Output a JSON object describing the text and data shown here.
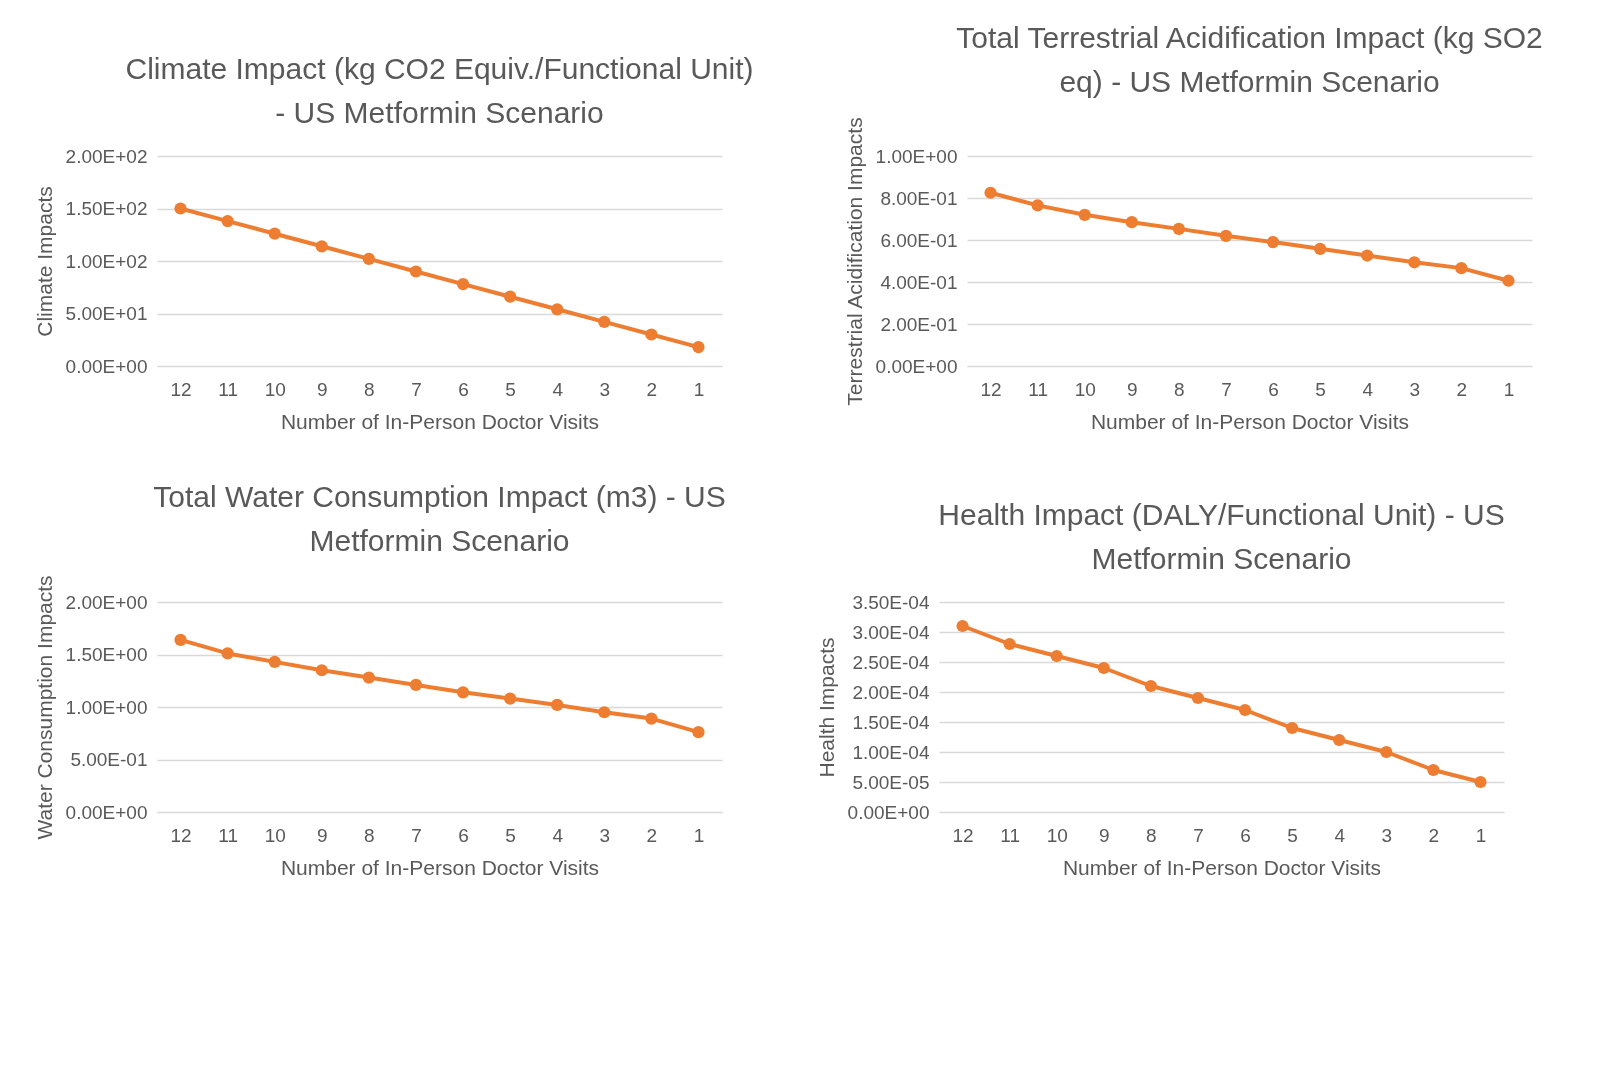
{
  "chart_data": [
    {
      "type": "line",
      "title": "Climate Impact (kg CO2 Equiv./Functional Unit) - US Metformin Scenario",
      "xlabel": "Number of In-Person Doctor Visits",
      "ylabel": "Climate Impacts",
      "categories": [
        "12",
        "11",
        "10",
        "9",
        "8",
        "7",
        "6",
        "5",
        "4",
        "3",
        "2",
        "1"
      ],
      "series": [
        {
          "color": "#ed7d31",
          "values": [
            150,
            138,
            126,
            114,
            102,
            90,
            78,
            66,
            54,
            42,
            30,
            18
          ]
        }
      ],
      "ylim": [
        0,
        200
      ],
      "yticks": [
        {
          "value": 0,
          "label": "0.00E+00"
        },
        {
          "value": 50,
          "label": "5.00E+01"
        },
        {
          "value": 100,
          "label": "1.00E+02"
        },
        {
          "value": 150,
          "label": "1.50E+02"
        },
        {
          "value": 200,
          "label": "2.00E+02"
        }
      ],
      "grid": "y",
      "marker": "circle"
    },
    {
      "type": "line",
      "title": "Total Terrestrial Acidification Impact (kg SO2 eq) - US Metformin Scenario",
      "xlabel": "Number of In-Person Doctor Visits",
      "ylabel": "Terrestrial Acidification Impacts",
      "categories": [
        "12",
        "11",
        "10",
        "9",
        "8",
        "7",
        "6",
        "5",
        "4",
        "3",
        "2",
        "1"
      ],
      "series": [
        {
          "color": "#ed7d31",
          "values": [
            0.825,
            0.765,
            0.72,
            0.685,
            0.653,
            0.62,
            0.59,
            0.558,
            0.526,
            0.494,
            0.466,
            0.406
          ]
        }
      ],
      "ylim": [
        0,
        1
      ],
      "yticks": [
        {
          "value": 0,
          "label": "0.00E+00"
        },
        {
          "value": 0.2,
          "label": "2.00E-01"
        },
        {
          "value": 0.4,
          "label": "4.00E-01"
        },
        {
          "value": 0.6,
          "label": "6.00E-01"
        },
        {
          "value": 0.8,
          "label": "8.00E-01"
        },
        {
          "value": 1,
          "label": "1.00E+00"
        }
      ],
      "grid": "y",
      "marker": "circle"
    },
    {
      "type": "line",
      "title": "Total Water Consumption Impact (m3) - US Metformin Scenario",
      "xlabel": "Number of In-Person Doctor Visits",
      "ylabel": "Water Consumption Impacts",
      "categories": [
        "12",
        "11",
        "10",
        "9",
        "8",
        "7",
        "6",
        "5",
        "4",
        "3",
        "2",
        "1"
      ],
      "series": [
        {
          "color": "#ed7d31",
          "values": [
            1.64,
            1.51,
            1.43,
            1.35,
            1.28,
            1.21,
            1.14,
            1.08,
            1.02,
            0.95,
            0.89,
            0.76
          ]
        }
      ],
      "ylim": [
        0,
        2
      ],
      "yticks": [
        {
          "value": 0,
          "label": "0.00E+00"
        },
        {
          "value": 0.5,
          "label": "5.00E-01"
        },
        {
          "value": 1,
          "label": "1.00E+00"
        },
        {
          "value": 1.5,
          "label": "1.50E+00"
        },
        {
          "value": 2,
          "label": "2.00E+00"
        }
      ],
      "grid": "y",
      "marker": "circle"
    },
    {
      "type": "line",
      "title": "Health Impact (DALY/Functional Unit) - US Metformin Scenario",
      "xlabel": "Number of In-Person Doctor Visits",
      "ylabel": "Health Impacts",
      "categories": [
        "12",
        "11",
        "10",
        "9",
        "8",
        "7",
        "6",
        "5",
        "4",
        "3",
        "2",
        "1"
      ],
      "series": [
        {
          "color": "#ed7d31",
          "values": [
            0.00031,
            0.00028,
            0.00026,
            0.00024,
            0.00021,
            0.00019,
            0.00017,
            0.00014,
            0.00012,
            0.0001,
            7e-05,
            5e-05
          ]
        }
      ],
      "ylim": [
        0,
        0.00035
      ],
      "yticks": [
        {
          "value": 0,
          "label": "0.00E+00"
        },
        {
          "value": 5e-05,
          "label": "5.00E-05"
        },
        {
          "value": 0.0001,
          "label": "1.00E-04"
        },
        {
          "value": 0.00015,
          "label": "1.50E-04"
        },
        {
          "value": 0.0002,
          "label": "2.00E-04"
        },
        {
          "value": 0.00025,
          "label": "2.50E-04"
        },
        {
          "value": 0.0003,
          "label": "3.00E-04"
        },
        {
          "value": 0.00035,
          "label": "3.50E-04"
        }
      ],
      "grid": "y",
      "marker": "circle"
    }
  ]
}
